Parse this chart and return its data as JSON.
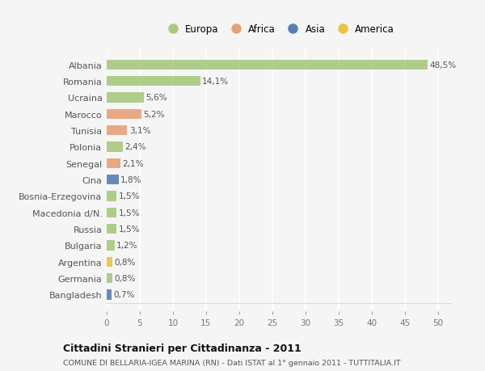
{
  "countries": [
    "Albania",
    "Romania",
    "Ucraina",
    "Marocco",
    "Tunisia",
    "Polonia",
    "Senegal",
    "Cina",
    "Bosnia-Erzegovina",
    "Macedonia d/N.",
    "Russia",
    "Bulgaria",
    "Argentina",
    "Germania",
    "Bangladesh"
  ],
  "values": [
    48.5,
    14.1,
    5.6,
    5.2,
    3.1,
    2.4,
    2.1,
    1.8,
    1.5,
    1.5,
    1.5,
    1.2,
    0.8,
    0.8,
    0.7
  ],
  "labels": [
    "48,5%",
    "14,1%",
    "5,6%",
    "5,2%",
    "3,1%",
    "2,4%",
    "2,1%",
    "1,8%",
    "1,5%",
    "1,5%",
    "1,5%",
    "1,2%",
    "0,8%",
    "0,8%",
    "0,7%"
  ],
  "continent": [
    "Europa",
    "Europa",
    "Europa",
    "Africa",
    "Africa",
    "Europa",
    "Africa",
    "Asia",
    "Europa",
    "Europa",
    "Europa",
    "Europa",
    "America",
    "Europa",
    "Asia"
  ],
  "colors": {
    "Europa": "#a8c97f",
    "Africa": "#e8a078",
    "Asia": "#5a7db5",
    "America": "#f0c040"
  },
  "xlim": [
    0,
    52
  ],
  "xticks": [
    0,
    5,
    10,
    15,
    20,
    25,
    30,
    35,
    40,
    45,
    50
  ],
  "title": "Cittadini Stranieri per Cittadinanza - 2011",
  "subtitle": "COMUNE DI BELLARIA-IGEA MARINA (RN) - Dati ISTAT al 1° gennaio 2011 - TUTTITALIA.IT",
  "bg_color": "#f5f5f5",
  "grid_color": "#ffffff",
  "bar_height": 0.6,
  "legend_order": [
    "Europa",
    "Africa",
    "Asia",
    "America"
  ]
}
